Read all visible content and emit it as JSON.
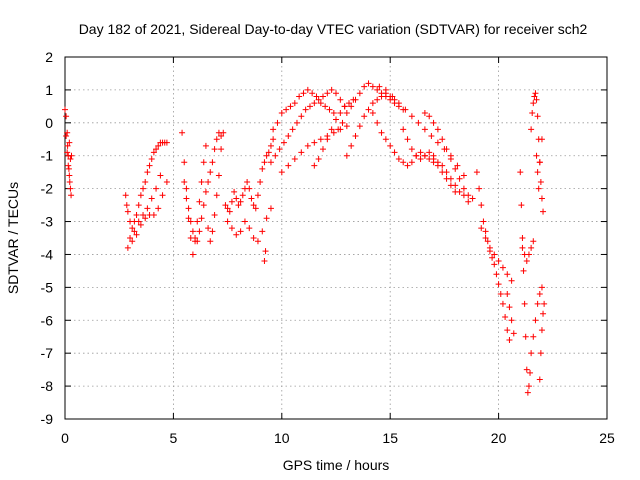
{
  "chart_data": {
    "type": "scatter",
    "title": "Day 182 of 2021, Sidereal Day-to-day VTEC variation (SDTVAR) for receiver sch2",
    "xlabel": "GPS time / hours",
    "ylabel": "SDTVAR / TECUs",
    "xlim": [
      0,
      25
    ],
    "ylim": [
      -9,
      2
    ],
    "x_ticks": [
      "0",
      "5",
      "10",
      "15",
      "20",
      "25"
    ],
    "y_ticks": [
      "2",
      "1",
      "0",
      "-1",
      "-2",
      "-3",
      "-4",
      "-5",
      "-6",
      "-7",
      "-8",
      "-9"
    ],
    "grid": true,
    "marker": "+",
    "point_color": "#ff0000",
    "series": [
      {
        "x": [
          0.0,
          0.05,
          0.1,
          0.12,
          0.15,
          0.18,
          0.2,
          0.22,
          0.25,
          0.28,
          0.3,
          0.05,
          0.1,
          0.15,
          0.2,
          0.25,
          2.8,
          2.85,
          2.9,
          3.0,
          3.1,
          3.2,
          3.3,
          3.4,
          3.5,
          3.6,
          3.7,
          3.8,
          3.9,
          4.0,
          4.1,
          4.2,
          4.3,
          4.4,
          4.5,
          4.6,
          4.7,
          3.0,
          3.2,
          3.4,
          3.6,
          3.8,
          4.0,
          4.2,
          4.4,
          2.9,
          3.1,
          3.3,
          3.5,
          3.7,
          3.9,
          4.1,
          4.3,
          4.5,
          4.7,
          5.4,
          5.5,
          5.6,
          5.7,
          5.8,
          5.9,
          6.0,
          6.1,
          6.2,
          6.3,
          6.4,
          6.5,
          6.6,
          6.7,
          6.8,
          6.9,
          7.0,
          7.1,
          7.2,
          5.5,
          5.6,
          5.7,
          5.8,
          5.9,
          6.0,
          6.1,
          6.2,
          6.3,
          6.4,
          6.5,
          6.6,
          6.7,
          6.8,
          6.9,
          7.0,
          7.1,
          7.2,
          7.3,
          7.4,
          7.5,
          7.6,
          7.7,
          7.8,
          7.9,
          8.0,
          8.1,
          8.2,
          8.3,
          8.4,
          8.5,
          8.6,
          8.7,
          8.8,
          8.9,
          9.0,
          9.1,
          9.2,
          9.3,
          9.4,
          9.5,
          9.6,
          7.5,
          7.7,
          7.9,
          8.1,
          8.3,
          8.5,
          8.7,
          8.9,
          9.1,
          9.3,
          9.5,
          9.2,
          9.25,
          9.6,
          9.8,
          10.0,
          10.2,
          10.4,
          10.6,
          10.8,
          11.0,
          11.2,
          11.4,
          11.6,
          11.8,
          12.0,
          12.2,
          12.4,
          9.5,
          9.7,
          9.9,
          10.1,
          10.3,
          10.5,
          10.7,
          10.9,
          11.1,
          11.3,
          11.5,
          11.7,
          11.9,
          12.1,
          12.3,
          12.5,
          12.7,
          12.9,
          10.0,
          10.3,
          10.6,
          10.9,
          11.2,
          11.5,
          11.8,
          12.1,
          12.4,
          12.7,
          13.0,
          11.5,
          11.7,
          11.9,
          12.1,
          12.3,
          12.5,
          12.7,
          12.9,
          13.1,
          13.3,
          12.6,
          12.8,
          13.0,
          13.2,
          13.4,
          13.6,
          13.8,
          14.0,
          14.2,
          14.4,
          14.6,
          14.8,
          15.0,
          15.2,
          15.4,
          15.6,
          13.0,
          13.2,
          13.4,
          13.6,
          13.8,
          14.0,
          14.2,
          14.4,
          14.6,
          14.8,
          15.0,
          15.2,
          14.2,
          14.4,
          14.6,
          14.8,
          15.0,
          15.2,
          15.4,
          15.6,
          15.8,
          16.0,
          16.2,
          16.4,
          16.6,
          16.8,
          17.0,
          14.5,
          14.8,
          15.1,
          15.4,
          15.7,
          16.0,
          16.3,
          16.6,
          16.9,
          17.2,
          17.5,
          17.8,
          18.1,
          18.4,
          15.6,
          15.8,
          16.0,
          16.2,
          16.4,
          16.6,
          16.8,
          17.0,
          17.2,
          17.4,
          17.6,
          17.8,
          18.0,
          16.6,
          16.8,
          17.0,
          17.2,
          17.4,
          17.6,
          17.8,
          18.0,
          18.2,
          18.4,
          18.6,
          17.0,
          17.2,
          17.4,
          17.6,
          17.8,
          18.0,
          18.2,
          18.4,
          18.6,
          18.8,
          19.0,
          19.1,
          19.2,
          19.3,
          19.4,
          19.5,
          19.6,
          19.7,
          19.8,
          19.9,
          20.0,
          20.1,
          20.2,
          20.3,
          20.4,
          20.5,
          19.2,
          19.4,
          19.6,
          19.8,
          20.0,
          20.2,
          20.4,
          20.6,
          20.4,
          20.5,
          20.6,
          20.7,
          21.0,
          21.05,
          21.1,
          21.15,
          21.2,
          21.25,
          21.3,
          21.35,
          21.4,
          21.45,
          21.5,
          21.1,
          21.2,
          21.3,
          21.4,
          21.5,
          21.6,
          21.5,
          21.55,
          21.6,
          21.65,
          21.7,
          21.75,
          21.8,
          21.85,
          21.9,
          21.95,
          22.0,
          22.05,
          21.6,
          21.7,
          21.8,
          21.9,
          22.0,
          21.9,
          21.95,
          22.0,
          22.05,
          22.1,
          21.75,
          21.8,
          21.85,
          21.9,
          22.0
        ],
        "y": [
          0.4,
          0.2,
          -0.3,
          -0.7,
          -1.0,
          -1.4,
          -1.6,
          -1.8,
          -2.0,
          -2.2,
          -1.0,
          -0.4,
          -0.9,
          -1.3,
          -0.6,
          -1.1,
          -2.2,
          -2.5,
          -2.7,
          -3.0,
          -3.2,
          -3.0,
          -2.8,
          -2.5,
          -2.2,
          -2.0,
          -1.8,
          -1.5,
          -1.3,
          -1.1,
          -0.9,
          -0.8,
          -0.7,
          -0.6,
          -0.6,
          -0.6,
          -0.6,
          -3.5,
          -3.3,
          -3.0,
          -2.8,
          -2.6,
          -2.3,
          -2.0,
          -1.6,
          -3.8,
          -3.6,
          -3.4,
          -3.1,
          -2.9,
          -2.8,
          -2.8,
          -2.6,
          -2.2,
          -1.8,
          -0.3,
          -1.2,
          -2.0,
          -2.6,
          -3.0,
          -3.3,
          -3.5,
          -3.6,
          -3.3,
          -2.9,
          -2.5,
          -2.1,
          -1.8,
          -1.5,
          -1.2,
          -0.8,
          -0.5,
          -0.3,
          -0.4,
          -1.8,
          -2.3,
          -2.9,
          -3.5,
          -4.0,
          -3.6,
          -3.0,
          -2.4,
          -1.8,
          -1.2,
          -0.7,
          -3.2,
          -3.6,
          -3.3,
          -2.8,
          -2.2,
          -1.6,
          -0.8,
          -0.3,
          -2.5,
          -2.6,
          -2.7,
          -2.4,
          -2.1,
          -2.3,
          -2.5,
          -2.4,
          -2.2,
          -2.0,
          -1.8,
          -2.0,
          -2.3,
          -2.5,
          -2.6,
          -2.2,
          -1.8,
          -1.4,
          -1.2,
          -1.0,
          -0.9,
          -0.7,
          -0.5,
          -3.0,
          -3.2,
          -3.4,
          -3.3,
          -3.0,
          -3.2,
          -3.5,
          -3.6,
          -3.3,
          -2.9,
          -2.6,
          -4.2,
          -3.9,
          -0.2,
          0.0,
          0.3,
          0.4,
          0.5,
          0.6,
          0.8,
          0.9,
          1.0,
          0.9,
          0.8,
          0.6,
          0.5,
          0.4,
          0.3,
          -1.2,
          -1.0,
          -0.8,
          -0.6,
          -0.4,
          -0.2,
          0.0,
          0.2,
          0.4,
          0.5,
          0.6,
          0.7,
          0.8,
          0.9,
          1.0,
          0.9,
          0.7,
          0.5,
          -1.5,
          -1.3,
          -1.1,
          -0.9,
          -0.7,
          -0.6,
          -0.5,
          -0.4,
          -0.3,
          -0.2,
          -0.1,
          -1.3,
          -1.1,
          -0.8,
          -0.5,
          -0.2,
          0.1,
          0.3,
          0.5,
          0.6,
          0.7,
          -0.2,
          0.0,
          0.3,
          0.5,
          0.7,
          0.9,
          1.1,
          1.2,
          1.1,
          1.0,
          0.9,
          0.8,
          0.7,
          0.6,
          0.5,
          0.4,
          -1.0,
          -0.7,
          -0.4,
          -0.1,
          0.2,
          0.4,
          0.6,
          0.7,
          0.8,
          0.9,
          0.8,
          0.7,
          0.3,
          0.0,
          -0.3,
          -0.5,
          -0.7,
          -0.9,
          -1.1,
          -1.2,
          -1.3,
          -1.2,
          -1.0,
          -0.9,
          -1.0,
          -1.1,
          -1.2,
          1.1,
          1.0,
          0.8,
          0.6,
          0.4,
          0.2,
          0.0,
          -0.2,
          -0.4,
          -0.6,
          -0.8,
          -1.0,
          -1.3,
          -1.6,
          -0.2,
          -0.5,
          -0.8,
          -1.0,
          -1.1,
          -1.0,
          -0.9,
          -1.1,
          -1.3,
          -1.5,
          -1.7,
          -1.9,
          -2.1,
          0.3,
          0.2,
          0.0,
          -0.2,
          -0.5,
          -0.8,
          -1.1,
          -1.4,
          -1.7,
          -2.0,
          -2.2,
          -1.0,
          -1.2,
          -1.3,
          -1.5,
          -1.7,
          -1.9,
          -2.1,
          -2.2,
          -2.4,
          -2.3,
          -1.5,
          -2.0,
          -2.5,
          -3.0,
          -3.3,
          -3.6,
          -3.9,
          -4.1,
          -4.3,
          -4.6,
          -4.9,
          -5.2,
          -5.5,
          -5.9,
          -6.3,
          -6.6,
          -3.2,
          -3.5,
          -3.8,
          -4.0,
          -4.2,
          -4.4,
          -4.6,
          -4.8,
          -5.2,
          -5.6,
          -6.0,
          -6.4,
          -1.5,
          -2.5,
          -3.5,
          -4.5,
          -5.5,
          -6.5,
          -7.5,
          -8.2,
          -8.0,
          -7.6,
          -7.0,
          -3.8,
          -4.0,
          -4.2,
          -4.0,
          -3.8,
          -3.6,
          -0.2,
          0.3,
          0.6,
          0.8,
          0.9,
          0.7,
          0.2,
          -0.5,
          -1.2,
          -1.8,
          -2.3,
          -2.7,
          -6.5,
          -6.0,
          -5.5,
          -5.2,
          -5.0,
          -7.8,
          -7.0,
          -6.3,
          -5.8,
          -5.5,
          -1.0,
          -1.5,
          -2.0,
          -1.2,
          -0.5
        ]
      }
    ]
  }
}
